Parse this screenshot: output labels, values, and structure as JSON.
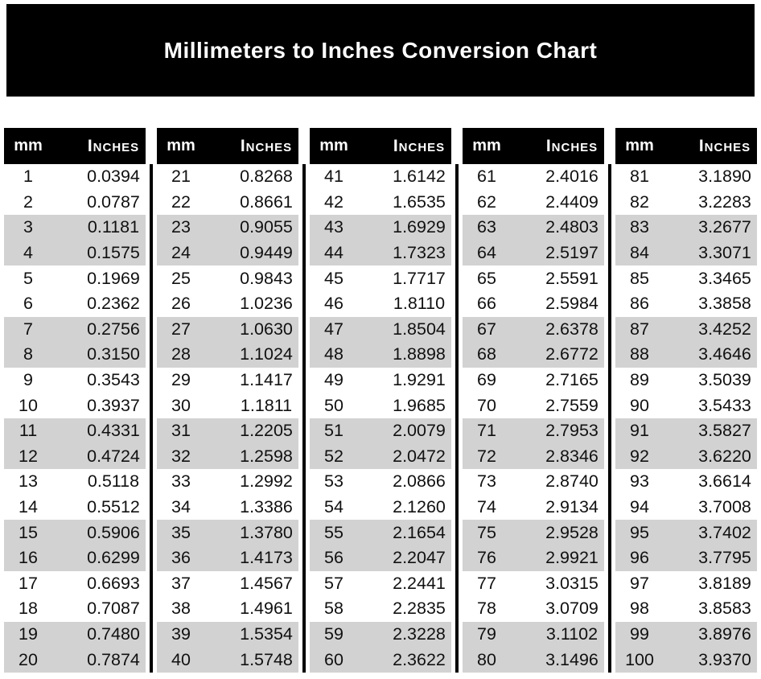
{
  "title": "Millimeters to Inches Conversion Chart",
  "columns": {
    "mm": "mm",
    "inches": "Inches"
  },
  "colors": {
    "banner_bg": "#000000",
    "header_bg": "#000000",
    "header_text": "#ffffff",
    "stripe": "#d2d2d2",
    "divider": "#000000",
    "text": "#111111"
  },
  "chart_data": {
    "type": "table",
    "title": "Millimeters to Inches Conversion Chart",
    "columns": [
      "mm",
      "Inches"
    ],
    "layout": "5 side-by-side sub-tables of 20 rows, zebra striping in pairs (rows 3-4, 7-8, 11-12, 15-16, 19-20 shaded), black vertical dividers between sub-tables",
    "tables": [
      {
        "rows": [
          [
            1,
            "0.0394"
          ],
          [
            2,
            "0.0787"
          ],
          [
            3,
            "0.1181"
          ],
          [
            4,
            "0.1575"
          ],
          [
            5,
            "0.1969"
          ],
          [
            6,
            "0.2362"
          ],
          [
            7,
            "0.2756"
          ],
          [
            8,
            "0.3150"
          ],
          [
            9,
            "0.3543"
          ],
          [
            10,
            "0.3937"
          ],
          [
            11,
            "0.4331"
          ],
          [
            12,
            "0.4724"
          ],
          [
            13,
            "0.5118"
          ],
          [
            14,
            "0.5512"
          ],
          [
            15,
            "0.5906"
          ],
          [
            16,
            "0.6299"
          ],
          [
            17,
            "0.6693"
          ],
          [
            18,
            "0.7087"
          ],
          [
            19,
            "0.7480"
          ],
          [
            20,
            "0.7874"
          ]
        ]
      },
      {
        "rows": [
          [
            21,
            "0.8268"
          ],
          [
            22,
            "0.8661"
          ],
          [
            23,
            "0.9055"
          ],
          [
            24,
            "0.9449"
          ],
          [
            25,
            "0.9843"
          ],
          [
            26,
            "1.0236"
          ],
          [
            27,
            "1.0630"
          ],
          [
            28,
            "1.1024"
          ],
          [
            29,
            "1.1417"
          ],
          [
            30,
            "1.1811"
          ],
          [
            31,
            "1.2205"
          ],
          [
            32,
            "1.2598"
          ],
          [
            33,
            "1.2992"
          ],
          [
            34,
            "1.3386"
          ],
          [
            35,
            "1.3780"
          ],
          [
            36,
            "1.4173"
          ],
          [
            37,
            "1.4567"
          ],
          [
            38,
            "1.4961"
          ],
          [
            39,
            "1.5354"
          ],
          [
            40,
            "1.5748"
          ]
        ]
      },
      {
        "rows": [
          [
            41,
            "1.6142"
          ],
          [
            42,
            "1.6535"
          ],
          [
            43,
            "1.6929"
          ],
          [
            44,
            "1.7323"
          ],
          [
            45,
            "1.7717"
          ],
          [
            46,
            "1.8110"
          ],
          [
            47,
            "1.8504"
          ],
          [
            48,
            "1.8898"
          ],
          [
            49,
            "1.9291"
          ],
          [
            50,
            "1.9685"
          ],
          [
            51,
            "2.0079"
          ],
          [
            52,
            "2.0472"
          ],
          [
            53,
            "2.0866"
          ],
          [
            54,
            "2.1260"
          ],
          [
            55,
            "2.1654"
          ],
          [
            56,
            "2.2047"
          ],
          [
            57,
            "2.2441"
          ],
          [
            58,
            "2.2835"
          ],
          [
            59,
            "2.3228"
          ],
          [
            60,
            "2.3622"
          ]
        ]
      },
      {
        "rows": [
          [
            61,
            "2.4016"
          ],
          [
            62,
            "2.4409"
          ],
          [
            63,
            "2.4803"
          ],
          [
            64,
            "2.5197"
          ],
          [
            65,
            "2.5591"
          ],
          [
            66,
            "2.5984"
          ],
          [
            67,
            "2.6378"
          ],
          [
            68,
            "2.6772"
          ],
          [
            69,
            "2.7165"
          ],
          [
            70,
            "2.7559"
          ],
          [
            71,
            "2.7953"
          ],
          [
            72,
            "2.8346"
          ],
          [
            73,
            "2.8740"
          ],
          [
            74,
            "2.9134"
          ],
          [
            75,
            "2.9528"
          ],
          [
            76,
            "2.9921"
          ],
          [
            77,
            "3.0315"
          ],
          [
            78,
            "3.0709"
          ],
          [
            79,
            "3.1102"
          ],
          [
            80,
            "3.1496"
          ]
        ]
      },
      {
        "rows": [
          [
            81,
            "3.1890"
          ],
          [
            82,
            "3.2283"
          ],
          [
            83,
            "3.2677"
          ],
          [
            84,
            "3.3071"
          ],
          [
            85,
            "3.3465"
          ],
          [
            86,
            "3.3858"
          ],
          [
            87,
            "3.4252"
          ],
          [
            88,
            "3.4646"
          ],
          [
            89,
            "3.5039"
          ],
          [
            90,
            "3.5433"
          ],
          [
            91,
            "3.5827"
          ],
          [
            92,
            "3.6220"
          ],
          [
            93,
            "3.6614"
          ],
          [
            94,
            "3.7008"
          ],
          [
            95,
            "3.7402"
          ],
          [
            96,
            "3.7795"
          ],
          [
            97,
            "3.8189"
          ],
          [
            98,
            "3.8583"
          ],
          [
            99,
            "3.8976"
          ],
          [
            100,
            "3.9370"
          ]
        ]
      }
    ]
  }
}
